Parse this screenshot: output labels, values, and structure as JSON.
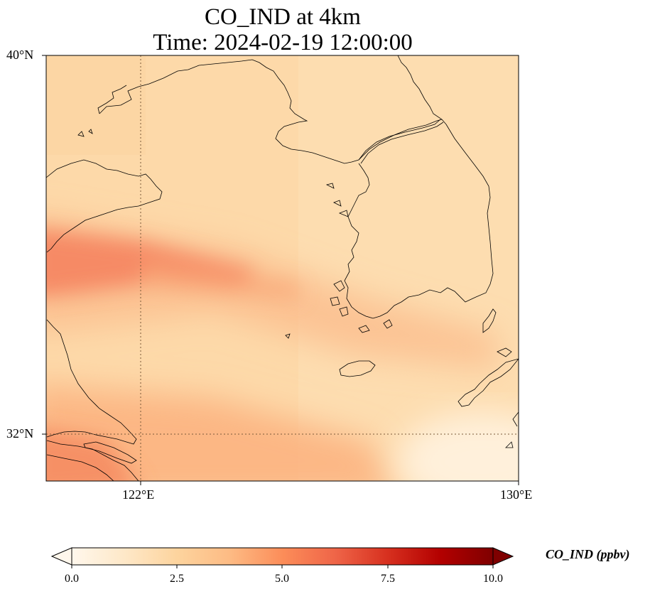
{
  "figure": {
    "title_line1": "CO_IND at 4km",
    "title_line2": "Time: 2024-02-19 12:00:00"
  },
  "map": {
    "lat_labels": [
      "40°N",
      "32°N"
    ],
    "lon_labels": [
      "122°E",
      "130°E"
    ],
    "extent": {
      "lon_min": 120,
      "lon_max": 130,
      "lat_min": 31,
      "lat_max": 40
    }
  },
  "colorbar": {
    "label": "CO_IND (ppbv)",
    "ticks": [
      "0.0",
      "2.5",
      "5.0",
      "7.5",
      "10.0"
    ],
    "range": [
      0,
      10
    ],
    "colormap": "OrRd",
    "extend": "both"
  },
  "colors": {
    "background_field": "#fdd9a9",
    "plume": "#f5845f",
    "low": "#fff4e6",
    "coastline": "#000000",
    "gridline": "#7a5a3a"
  }
}
